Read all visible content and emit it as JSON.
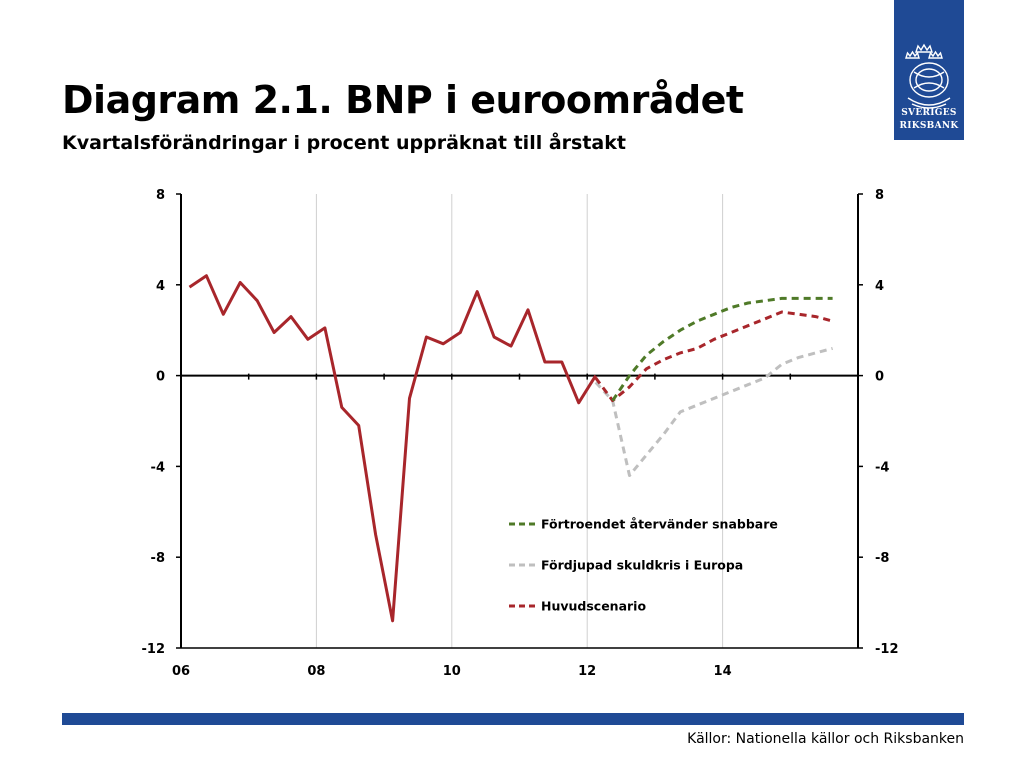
{
  "header": {
    "title": "Diagram 2.1. BNP i euroområdet",
    "subtitle": "Kvartalsförändringar i procent uppräknat till årstakt"
  },
  "logo": {
    "line1": "SVERIGES",
    "line2": "RIKSBANK"
  },
  "footer": {
    "sources": "Källor: Nationella källor och Riksbanken"
  },
  "colors": {
    "brand": "#1f4a95",
    "historical": "#a8262b",
    "main_scenario": "#a8262b",
    "confidence": "#4f7a28",
    "debt_crisis": "#bfbfbf"
  },
  "chart_data": {
    "type": "line",
    "title": "Diagram 2.1. BNP i euroområdet",
    "subtitle": "Kvartalsförändringar i procent uppräknat till årstakt",
    "xlabel": "",
    "ylabel": "",
    "xlim": [
      2006,
      2016
    ],
    "ylim": [
      -12,
      8
    ],
    "x_ticks": [
      {
        "x": 2006,
        "label": "06"
      },
      {
        "x": 2008,
        "label": "08"
      },
      {
        "x": 2010,
        "label": "10"
      },
      {
        "x": 2012,
        "label": "12"
      },
      {
        "x": 2014,
        "label": "14"
      }
    ],
    "y_ticks": [
      8,
      4,
      0,
      -4,
      -8,
      -12
    ],
    "y_tick_labels": [
      "8",
      "4",
      "0",
      "-4",
      "-8",
      "-12"
    ],
    "grid": "vertical",
    "legend_position": "lower-right",
    "series": [
      {
        "key": "historical",
        "style": "solid",
        "x": [
          2006.125,
          2006.375,
          2006.625,
          2006.875,
          2007.125,
          2007.375,
          2007.625,
          2007.875,
          2008.125,
          2008.375,
          2008.625,
          2008.875,
          2009.125,
          2009.375,
          2009.625,
          2009.875,
          2010.125,
          2010.375,
          2010.625,
          2010.875,
          2011.125,
          2011.375,
          2011.625,
          2011.875,
          2012.125
        ],
        "y": [
          3.9,
          4.4,
          2.7,
          4.1,
          3.3,
          1.9,
          2.6,
          1.6,
          2.1,
          -1.4,
          -2.2,
          -7.0,
          -10.8,
          -1.0,
          1.7,
          1.4,
          1.9,
          3.7,
          1.7,
          1.3,
          2.9,
          0.6,
          0.6,
          -1.2,
          0.0
        ]
      },
      {
        "key": "confidence",
        "name": "Förtroendet återvänder snabbare",
        "style": "dashed",
        "x": [
          2012.375,
          2012.625,
          2012.875,
          2013.125,
          2013.375,
          2013.625,
          2013.875,
          2014.125,
          2014.375,
          2014.625,
          2014.875,
          2015.125,
          2015.375,
          2015.625
        ],
        "y": [
          -1.1,
          0.0,
          0.9,
          1.5,
          2.0,
          2.4,
          2.7,
          3.0,
          3.2,
          3.3,
          3.4,
          3.4,
          3.4,
          3.4
        ]
      },
      {
        "key": "debt_crisis",
        "name": "Fördjupad skuldkris i Europa",
        "style": "dashed",
        "x": [
          2012.125,
          2012.375,
          2012.625,
          2012.875,
          2013.125,
          2013.375,
          2013.625,
          2013.875,
          2014.125,
          2014.375,
          2014.625,
          2014.875,
          2015.125,
          2015.375,
          2015.625
        ],
        "y": [
          -0.3,
          -1.1,
          -4.4,
          -3.5,
          -2.6,
          -1.6,
          -1.3,
          -1.0,
          -0.7,
          -0.4,
          -0.1,
          0.5,
          0.8,
          1.0,
          1.2
        ]
      },
      {
        "key": "main_scenario",
        "name": "Huvudscenario",
        "style": "dashed",
        "x": [
          2012.125,
          2012.375,
          2012.625,
          2012.875,
          2013.125,
          2013.375,
          2013.625,
          2013.875,
          2014.125,
          2014.375,
          2014.625,
          2014.875,
          2015.125,
          2015.375,
          2015.625
        ],
        "y": [
          -0.1,
          -1.1,
          -0.5,
          0.3,
          0.7,
          1.0,
          1.2,
          1.6,
          1.9,
          2.2,
          2.5,
          2.8,
          2.7,
          2.6,
          2.4
        ]
      }
    ],
    "legend": [
      {
        "key": "confidence",
        "label": "Förtroendet återvänder snabbare"
      },
      {
        "key": "debt_crisis",
        "label": "Fördjupad skuldkris i Europa"
      },
      {
        "key": "main_scenario",
        "label": "Huvudscenario"
      }
    ]
  }
}
